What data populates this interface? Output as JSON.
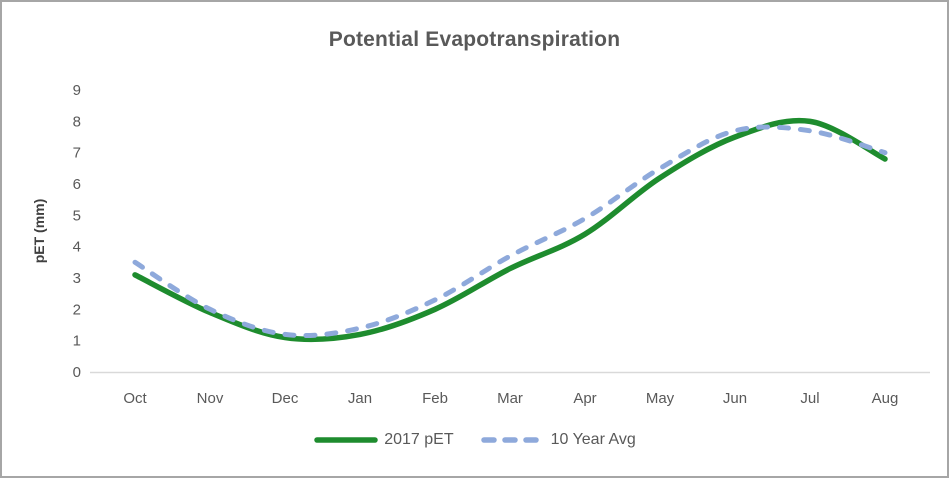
{
  "window": {
    "background": "#ffffff",
    "border_color": "#a6a6a6"
  },
  "chart_data": {
    "type": "line",
    "title": "Potential Evapotranspiration",
    "xlabel": "",
    "ylabel": "pET (mm)",
    "categories": [
      "Oct",
      "Nov",
      "Dec",
      "Jan",
      "Feb",
      "Mar",
      "Apr",
      "May",
      "Jun",
      "Jul",
      "Aug"
    ],
    "series": [
      {
        "name": "2017 pET",
        "values": [
          3.1,
          1.9,
          1.1,
          1.2,
          2.0,
          3.3,
          4.4,
          6.2,
          7.5,
          8.0,
          6.8
        ],
        "color": "#1e8c2e",
        "style": "solid"
      },
      {
        "name": "10 Year Avg",
        "values": [
          3.5,
          2.0,
          1.2,
          1.4,
          2.3,
          3.7,
          4.9,
          6.5,
          7.7,
          7.7,
          7.0
        ],
        "color": "#8ea9db",
        "style": "dashed"
      }
    ],
    "ylim": [
      0,
      9
    ],
    "yticks": [
      0,
      1,
      2,
      3,
      4,
      5,
      6,
      7,
      8,
      9
    ],
    "grid": "off",
    "smooth": true,
    "legend_position": "bottom",
    "text_color": "#595959",
    "axis_line_color": "#d9d9d9"
  }
}
